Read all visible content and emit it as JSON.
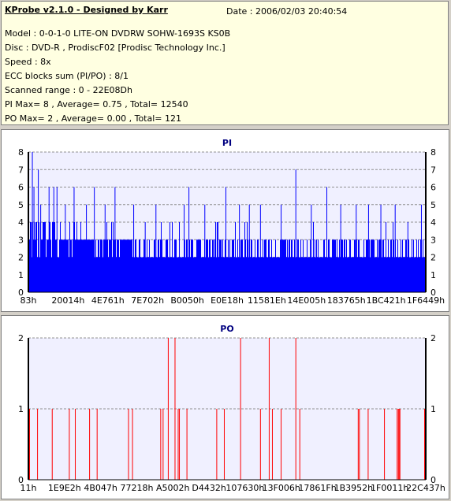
{
  "header": {
    "title": "KProbe v2.1.0 - Designed by Karr",
    "date": "Date : 2006/02/03 20:40:54",
    "lines": [
      "Model : 0-0-1-0 LITE-ON DVDRW SOHW-1693S KS0B",
      "Disc : DVD-R , ProdiscF02 [Prodisc Technology Inc.]",
      "Speed : 8x",
      "ECC blocks sum (PI/PO) : 8/1",
      "Scanned range : 0 - 22E08Dh",
      "PI Max= 8 , Average= 0.75 , Total= 12540",
      "PO Max= 2 , Average= 0.00 , Total= 121"
    ]
  },
  "chart_data": [
    {
      "type": "bar",
      "title": "PI",
      "ylim": [
        0,
        8
      ],
      "yticks": [
        0,
        1,
        2,
        3,
        4,
        5,
        6,
        7,
        8
      ],
      "xticks": [
        "83h",
        "20014h",
        "4E761h",
        "7E702h",
        "B0050h",
        "E0E18h",
        "11581Eh",
        "14E005h",
        "183765h",
        "1BC421h",
        "1F6449h"
      ],
      "baseline_level": 2,
      "dense_level": 3,
      "max": 8,
      "color": "#0000ff",
      "spikes": [
        {
          "x": 0.01,
          "v": 8
        },
        {
          "x": 0.014,
          "v": 6
        },
        {
          "x": 0.025,
          "v": 7
        },
        {
          "x": 0.031,
          "v": 5
        },
        {
          "x": 0.052,
          "v": 6
        },
        {
          "x": 0.064,
          "v": 6
        },
        {
          "x": 0.072,
          "v": 6
        },
        {
          "x": 0.093,
          "v": 5
        },
        {
          "x": 0.115,
          "v": 6
        },
        {
          "x": 0.146,
          "v": 5
        },
        {
          "x": 0.166,
          "v": 6
        },
        {
          "x": 0.193,
          "v": 5
        },
        {
          "x": 0.218,
          "v": 6
        },
        {
          "x": 0.265,
          "v": 5
        },
        {
          "x": 0.294,
          "v": 4
        },
        {
          "x": 0.321,
          "v": 5
        },
        {
          "x": 0.356,
          "v": 4
        },
        {
          "x": 0.392,
          "v": 5
        },
        {
          "x": 0.404,
          "v": 6
        },
        {
          "x": 0.444,
          "v": 5
        },
        {
          "x": 0.475,
          "v": 4
        },
        {
          "x": 0.497,
          "v": 6
        },
        {
          "x": 0.531,
          "v": 5
        },
        {
          "x": 0.556,
          "v": 5
        },
        {
          "x": 0.584,
          "v": 5
        },
        {
          "x": 0.636,
          "v": 5
        },
        {
          "x": 0.673,
          "v": 7
        },
        {
          "x": 0.712,
          "v": 5
        },
        {
          "x": 0.751,
          "v": 6
        },
        {
          "x": 0.786,
          "v": 5
        },
        {
          "x": 0.825,
          "v": 5
        },
        {
          "x": 0.856,
          "v": 5
        },
        {
          "x": 0.887,
          "v": 5
        },
        {
          "x": 0.923,
          "v": 5
        },
        {
          "x": 0.955,
          "v": 4
        },
        {
          "x": 0.989,
          "v": 5
        }
      ]
    },
    {
      "type": "bar",
      "title": "PO",
      "ylim": [
        0,
        2
      ],
      "yticks": [
        0,
        1,
        2
      ],
      "xticks": [
        "11h",
        "1E9E2h",
        "4B047h",
        "77218h",
        "A5002h",
        "D4432h",
        "107630h",
        "13F006h",
        "17861Fh",
        "1B3952h",
        "1F0011h",
        "22C437h"
      ],
      "color": "#ff0000",
      "bars": [
        {
          "x": 0.003,
          "v": 1
        },
        {
          "x": 0.023,
          "v": 1
        },
        {
          "x": 0.06,
          "v": 1
        },
        {
          "x": 0.103,
          "v": 1
        },
        {
          "x": 0.118,
          "v": 1
        },
        {
          "x": 0.154,
          "v": 1
        },
        {
          "x": 0.173,
          "v": 1
        },
        {
          "x": 0.252,
          "v": 1
        },
        {
          "x": 0.262,
          "v": 1
        },
        {
          "x": 0.333,
          "v": 1
        },
        {
          "x": 0.339,
          "v": 1
        },
        {
          "x": 0.352,
          "v": 2
        },
        {
          "x": 0.369,
          "v": 2
        },
        {
          "x": 0.377,
          "v": 1
        },
        {
          "x": 0.38,
          "v": 1
        },
        {
          "x": 0.399,
          "v": 1
        },
        {
          "x": 0.474,
          "v": 1
        },
        {
          "x": 0.493,
          "v": 1
        },
        {
          "x": 0.534,
          "v": 2
        },
        {
          "x": 0.584,
          "v": 1
        },
        {
          "x": 0.606,
          "v": 2
        },
        {
          "x": 0.614,
          "v": 1
        },
        {
          "x": 0.636,
          "v": 1
        },
        {
          "x": 0.673,
          "v": 2
        },
        {
          "x": 0.683,
          "v": 1
        },
        {
          "x": 0.83,
          "v": 1
        },
        {
          "x": 0.833,
          "v": 1
        },
        {
          "x": 0.855,
          "v": 1
        },
        {
          "x": 0.896,
          "v": 1
        },
        {
          "x": 0.928,
          "v": 1
        },
        {
          "x": 0.931,
          "v": 1
        },
        {
          "x": 0.933,
          "v": 1
        },
        {
          "x": 0.935,
          "v": 1
        },
        {
          "x": 0.997,
          "v": 1
        }
      ]
    }
  ]
}
